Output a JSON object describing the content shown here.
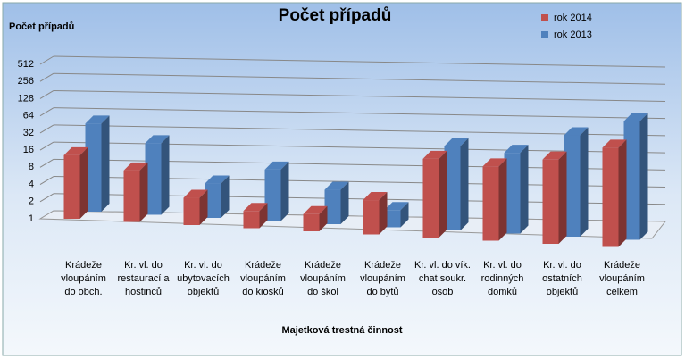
{
  "chart_data": {
    "type": "bar3d",
    "title": "Počet případů",
    "y_label": "Počet případů",
    "x_label": "Majetková  trestná činnost",
    "categories": [
      "Krádeže vloupáním do obch.",
      "Kr. vl. do restaurací a hostinců",
      "Kr. vl. do ubytovacích objektů",
      "Krádeže vloupáním do kiosků",
      "Krádeže vloupáním do škol",
      "Krádeže vloupáním do bytů",
      "Kr. vl. do vík. chat soukr. osob",
      "Kr. vl. do rodinných domků",
      "Kr. vl. do ostatních objektů",
      "Krádeže vloupáním celkem"
    ],
    "series": [
      {
        "name": "rok 2014",
        "color": "#c0504d",
        "values": [
          13,
          8,
          3,
          2,
          2,
          4,
          24,
          20,
          30,
          55
        ]
      },
      {
        "name": "rok 2013",
        "color": "#4f81bd",
        "values": [
          35,
          18,
          4,
          8,
          4,
          2,
          30,
          26,
          60,
          120
        ]
      }
    ],
    "ylim": [
      1,
      512
    ],
    "yticks": [
      1,
      2,
      4,
      8,
      16,
      32,
      64,
      128,
      256,
      512
    ],
    "log_scale": true,
    "log_base": 2,
    "grid": true,
    "legend": "top-right"
  }
}
